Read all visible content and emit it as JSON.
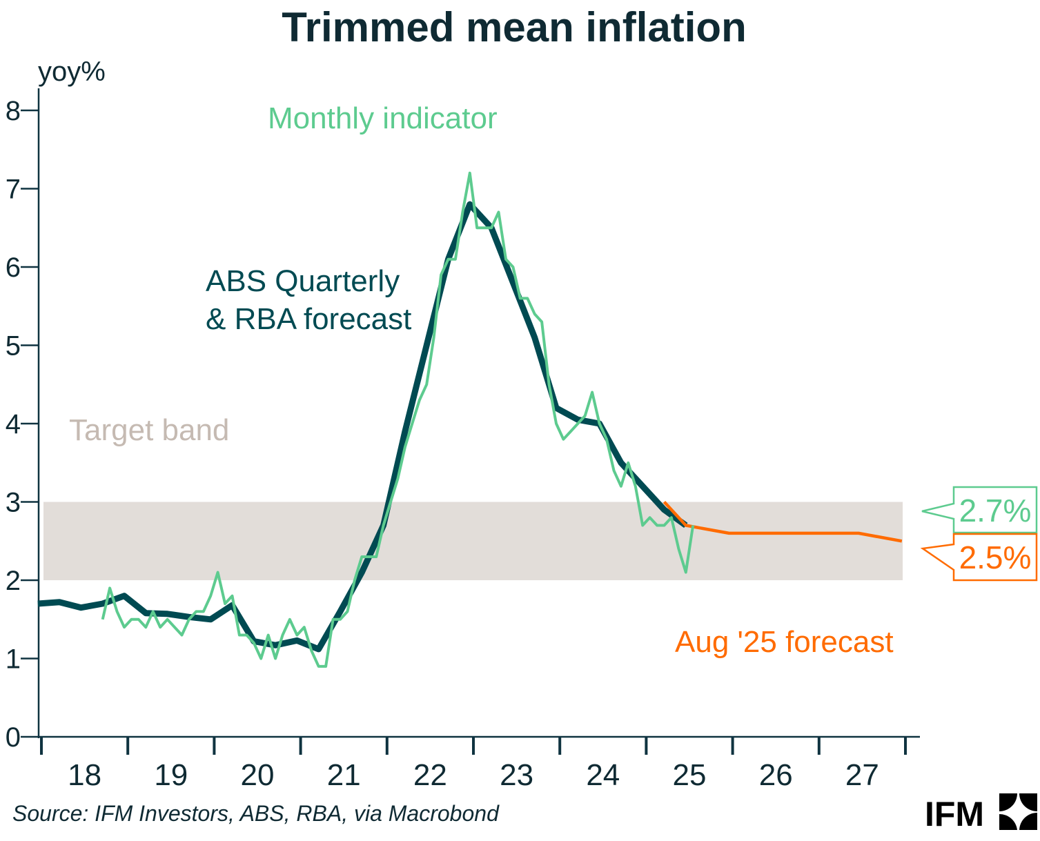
{
  "chart_data": {
    "type": "line",
    "title": "Trimmed mean inflation",
    "ylabel": "yoy%",
    "ylim": [
      0,
      8
    ],
    "yticks": [
      "0",
      "1",
      "2",
      "3",
      "4",
      "5",
      "6",
      "7",
      "8"
    ],
    "xlim": [
      "2018-01",
      "2027-12"
    ],
    "xticks": [
      "18",
      "19",
      "20",
      "21",
      "22",
      "23",
      "24",
      "25",
      "26",
      "27"
    ],
    "grid": false,
    "target_band": {
      "label": "Target band",
      "range": [
        2,
        3
      ],
      "color": "#e2ddd9",
      "label_color": "#c5bab2"
    },
    "series": [
      {
        "name": "ABS Quarterly & RBA forecast",
        "label_lines": [
          "ABS Quarterly",
          "& RBA forecast"
        ],
        "color": "#004a52",
        "x": [
          "2017-12",
          "2018-03",
          "2018-06",
          "2018-09",
          "2018-12",
          "2019-03",
          "2019-06",
          "2019-09",
          "2019-12",
          "2020-03",
          "2020-06",
          "2020-09",
          "2020-12",
          "2021-03",
          "2021-06",
          "2021-09",
          "2021-12",
          "2022-03",
          "2022-06",
          "2022-09",
          "2022-12",
          "2023-03",
          "2023-06",
          "2023-09",
          "2023-12",
          "2024-03",
          "2024-06",
          "2024-09",
          "2024-12",
          "2025-03",
          "2025-06"
        ],
        "y": [
          1.7,
          1.72,
          1.65,
          1.7,
          1.8,
          1.58,
          1.57,
          1.53,
          1.5,
          1.68,
          1.22,
          1.17,
          1.23,
          1.12,
          1.6,
          2.1,
          2.7,
          3.9,
          5.0,
          6.1,
          6.8,
          6.5,
          5.8,
          5.1,
          4.2,
          4.05,
          4.0,
          3.5,
          3.2,
          2.9,
          2.7
        ]
      },
      {
        "name": "Monthly indicator",
        "color": "#5dcb8f",
        "x": [
          "2018-09",
          "2018-10",
          "2018-11",
          "2018-12",
          "2019-01",
          "2019-02",
          "2019-03",
          "2019-04",
          "2019-05",
          "2019-06",
          "2019-07",
          "2019-08",
          "2019-09",
          "2019-10",
          "2019-11",
          "2019-12",
          "2020-01",
          "2020-02",
          "2020-03",
          "2020-04",
          "2020-05",
          "2020-06",
          "2020-07",
          "2020-08",
          "2020-09",
          "2020-10",
          "2020-11",
          "2020-12",
          "2021-01",
          "2021-02",
          "2021-03",
          "2021-04",
          "2021-05",
          "2021-06",
          "2021-07",
          "2021-08",
          "2021-09",
          "2021-10",
          "2021-11",
          "2021-12",
          "2022-01",
          "2022-02",
          "2022-03",
          "2022-04",
          "2022-05",
          "2022-06",
          "2022-07",
          "2022-08",
          "2022-09",
          "2022-10",
          "2022-11",
          "2022-12",
          "2023-01",
          "2023-02",
          "2023-03",
          "2023-04",
          "2023-05",
          "2023-06",
          "2023-07",
          "2023-08",
          "2023-09",
          "2023-10",
          "2023-11",
          "2023-12",
          "2024-01",
          "2024-02",
          "2024-03",
          "2024-04",
          "2024-05",
          "2024-06",
          "2024-07",
          "2024-08",
          "2024-09",
          "2024-10",
          "2024-11",
          "2024-12",
          "2025-01",
          "2025-02",
          "2025-03",
          "2025-04",
          "2025-05",
          "2025-06",
          "2025-07"
        ],
        "y": [
          1.5,
          1.9,
          1.6,
          1.4,
          1.5,
          1.5,
          1.4,
          1.6,
          1.4,
          1.5,
          1.4,
          1.3,
          1.5,
          1.6,
          1.6,
          1.8,
          2.1,
          1.7,
          1.8,
          1.3,
          1.3,
          1.2,
          1.0,
          1.3,
          1.0,
          1.3,
          1.5,
          1.3,
          1.4,
          1.1,
          0.9,
          0.9,
          1.5,
          1.5,
          1.6,
          2.0,
          2.3,
          2.3,
          2.3,
          2.7,
          3.0,
          3.3,
          3.7,
          4.0,
          4.3,
          4.5,
          5.1,
          5.9,
          6.1,
          6.1,
          6.7,
          7.2,
          6.5,
          6.5,
          6.5,
          6.7,
          6.1,
          6.0,
          5.6,
          5.6,
          5.4,
          5.3,
          4.5,
          4.0,
          3.8,
          3.9,
          4.0,
          4.1,
          4.4,
          4.0,
          3.8,
          3.4,
          3.2,
          3.5,
          3.2,
          2.7,
          2.8,
          2.7,
          2.7,
          2.8,
          2.4,
          2.1,
          2.7
        ],
        "callout": "2.7%"
      },
      {
        "name": "Aug '25 forecast",
        "color": "#ff6b00",
        "x": [
          "2025-03",
          "2025-06",
          "2025-12",
          "2027-06",
          "2027-12"
        ],
        "y": [
          3.0,
          2.7,
          2.6,
          2.6,
          2.5
        ],
        "callout": "2.5%"
      }
    ]
  },
  "footer": {
    "source": "Source: IFM Investors, ABS, RBA, via Macrobond",
    "logo_text": "IFM"
  },
  "colors": {
    "axis": "#0f3340",
    "title": "#0f2a33"
  }
}
